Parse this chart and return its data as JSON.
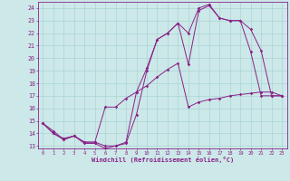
{
  "bg_color": "#cce8e8",
  "grid_color": "#aad4d4",
  "line_color": "#882288",
  "xlabel": "Windchill (Refroidissement éolien,°C)",
  "xlim": [
    -0.5,
    23.5
  ],
  "ylim": [
    12.8,
    24.5
  ],
  "xticks": [
    0,
    1,
    2,
    3,
    4,
    5,
    6,
    7,
    8,
    9,
    10,
    11,
    12,
    13,
    14,
    15,
    16,
    17,
    18,
    19,
    20,
    21,
    22,
    23
  ],
  "yticks": [
    13,
    14,
    15,
    16,
    17,
    18,
    19,
    20,
    21,
    22,
    23,
    24
  ],
  "curves": [
    {
      "x": [
        0,
        1,
        2,
        3,
        4,
        5,
        6,
        7,
        8,
        9,
        10,
        11,
        12,
        13,
        14,
        15,
        16,
        17,
        18,
        19,
        20,
        21,
        22,
        23
      ],
      "y": [
        14.8,
        14.0,
        13.5,
        13.8,
        13.2,
        13.2,
        12.8,
        13.0,
        13.2,
        15.5,
        19.0,
        21.5,
        22.0,
        22.8,
        19.5,
        23.8,
        24.2,
        23.2,
        23.0,
        23.0,
        20.5,
        17.0,
        17.0,
        17.0
      ]
    },
    {
      "x": [
        0,
        1,
        2,
        3,
        4,
        5,
        6,
        7,
        8,
        9,
        10,
        11,
        12,
        13,
        14,
        15,
        16,
        17,
        18,
        19,
        20,
        21,
        22,
        23
      ],
      "y": [
        14.8,
        14.0,
        13.6,
        13.8,
        13.3,
        13.3,
        13.0,
        13.0,
        13.3,
        17.3,
        19.2,
        21.5,
        22.0,
        22.8,
        22.0,
        24.0,
        24.3,
        23.2,
        23.0,
        23.0,
        22.3,
        20.6,
        17.0,
        17.0
      ]
    },
    {
      "x": [
        0,
        1,
        2,
        3,
        4,
        5,
        6,
        7,
        8,
        9,
        10,
        11,
        12,
        13,
        14,
        15,
        16,
        17,
        18,
        19,
        20,
        21,
        22,
        23
      ],
      "y": [
        14.8,
        14.2,
        13.5,
        13.8,
        13.3,
        13.3,
        16.1,
        16.1,
        16.8,
        17.3,
        17.8,
        18.5,
        19.1,
        19.6,
        16.1,
        16.5,
        16.7,
        16.8,
        17.0,
        17.1,
        17.2,
        17.3,
        17.3,
        17.0
      ]
    }
  ]
}
